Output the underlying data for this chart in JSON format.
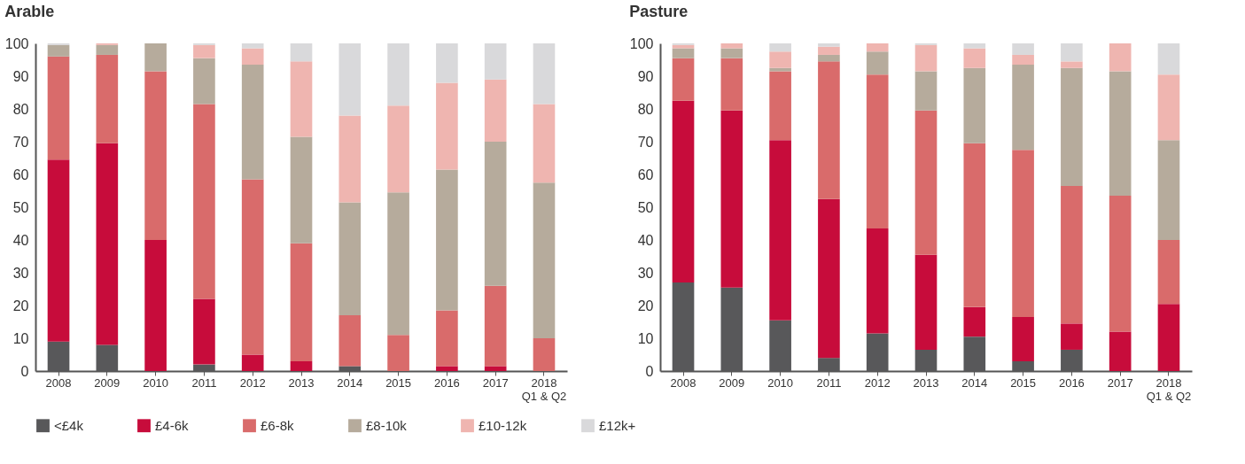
{
  "chart_data": [
    {
      "type": "bar",
      "stacked": true,
      "title": "Arable",
      "categories": [
        "2008",
        "2009",
        "2010",
        "2011",
        "2012",
        "2013",
        "2014",
        "2015",
        "2016",
        "2017",
        "2018\nQ1 & Q2"
      ],
      "ylim": [
        0,
        100
      ],
      "yticks": [
        0,
        10,
        20,
        30,
        40,
        50,
        60,
        70,
        80,
        90,
        100
      ],
      "grid": false,
      "legend": "bottom",
      "series": [
        {
          "name": "<£4k",
          "color": "#58585a",
          "values": [
            9,
            8,
            0,
            2,
            0,
            0,
            1.5,
            0,
            0,
            0,
            0
          ]
        },
        {
          "name": "£4-6k",
          "color": "#c70c3b",
          "values": [
            55.5,
            61.5,
            40,
            20,
            5,
            3,
            0,
            0,
            1.5,
            1.5,
            0
          ]
        },
        {
          "name": "£6-8k",
          "color": "#d96b6b",
          "values": [
            31.5,
            27,
            51.5,
            59.5,
            53.5,
            36,
            15.5,
            11,
            17,
            24.5,
            10
          ]
        },
        {
          "name": "£8-10k",
          "color": "#b6ab9c",
          "values": [
            3.5,
            3,
            8.5,
            14,
            35,
            32.5,
            34.5,
            43.5,
            43,
            44,
            47.5
          ]
        },
        {
          "name": "£10-12k",
          "color": "#efb5b0",
          "values": [
            0,
            0.5,
            0,
            4,
            5,
            23,
            26.5,
            26.5,
            26.5,
            19,
            24
          ]
        },
        {
          "name": "£12k+",
          "color": "#d9d9db",
          "values": [
            0.5,
            0,
            0,
            0.5,
            1.5,
            5.5,
            22,
            19,
            12,
            11,
            18.5
          ]
        }
      ]
    },
    {
      "type": "bar",
      "stacked": true,
      "title": "Pasture",
      "categories": [
        "2008",
        "2009",
        "2010",
        "2011",
        "2012",
        "2013",
        "2014",
        "2015",
        "2016",
        "2017",
        "2018\nQ1 & Q2"
      ],
      "ylim": [
        0,
        100
      ],
      "yticks": [
        0,
        10,
        20,
        30,
        40,
        50,
        60,
        70,
        80,
        90,
        100
      ],
      "grid": false,
      "legend": "bottom",
      "series": [
        {
          "name": "<£4k",
          "color": "#58585a",
          "values": [
            27,
            25.5,
            15.5,
            4,
            11.5,
            6.5,
            10.5,
            3,
            6.5,
            0,
            0
          ]
        },
        {
          "name": "£4-6k",
          "color": "#c70c3b",
          "values": [
            55.5,
            54,
            55,
            48.5,
            32,
            29,
            9,
            13.5,
            8,
            12,
            20.5
          ]
        },
        {
          "name": "£6-8k",
          "color": "#d96b6b",
          "values": [
            13,
            16,
            21,
            42,
            47,
            44,
            50,
            51,
            42,
            41.5,
            19.5
          ]
        },
        {
          "name": "£8-10k",
          "color": "#b6ab9c",
          "values": [
            3,
            3,
            1,
            2,
            7,
            12,
            23,
            26,
            36,
            38,
            30.5
          ]
        },
        {
          "name": "£10-12k",
          "color": "#efb5b0",
          "values": [
            1,
            1.5,
            5,
            2.5,
            2.5,
            8,
            6,
            3,
            2,
            8.5,
            20
          ]
        },
        {
          "name": "£12k+",
          "color": "#d9d9db",
          "values": [
            0.5,
            0,
            2.5,
            1,
            0,
            0.5,
            1.5,
            3.5,
            5.5,
            0,
            9.5
          ]
        }
      ]
    }
  ]
}
